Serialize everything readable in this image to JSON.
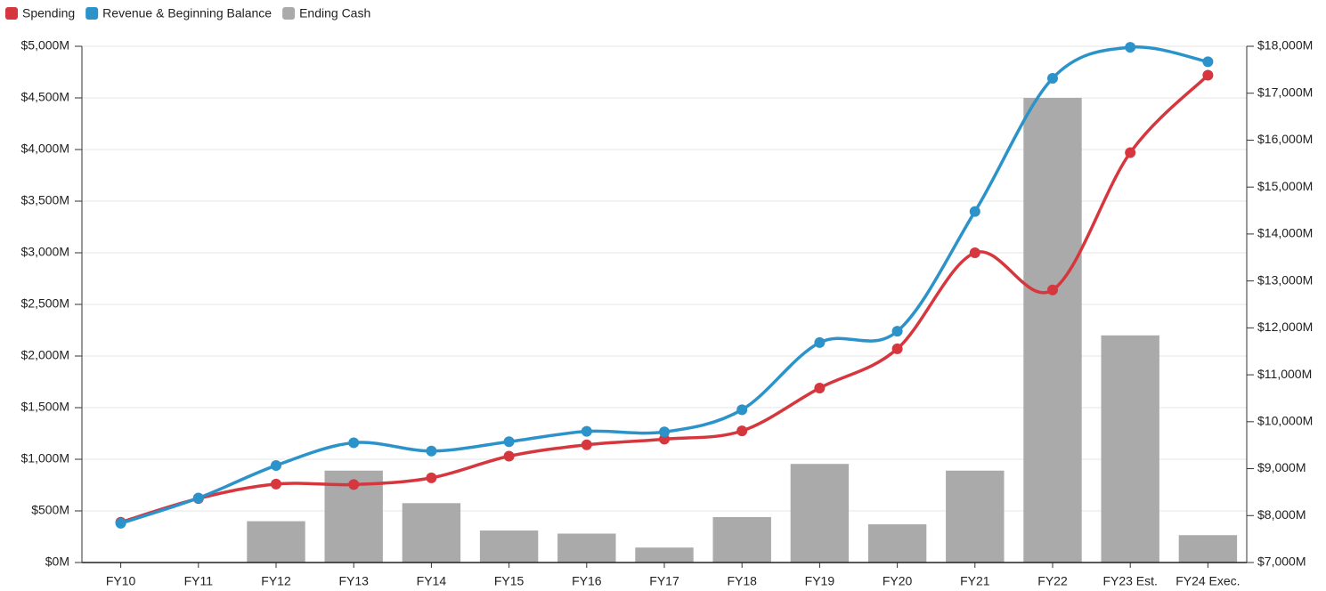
{
  "chart_data": {
    "type": "bar_line",
    "categories": [
      "FY10",
      "FY11",
      "FY12",
      "FY13",
      "FY14",
      "FY15",
      "FY16",
      "FY17",
      "FY18",
      "FY19",
      "FY20",
      "FY21",
      "FY22",
      "FY23 Est.",
      "FY24 Exec."
    ],
    "series": [
      {
        "name": "Spending",
        "color": "#d6363d",
        "kind": "line",
        "values": [
          390,
          620,
          760,
          755,
          820,
          1030,
          1140,
          1195,
          1275,
          1690,
          2070,
          3000,
          2640,
          3970,
          4720
        ]
      },
      {
        "name": "Revenue & Beginning Balance",
        "color": "#2b93c9",
        "kind": "line",
        "values": [
          380,
          625,
          940,
          1160,
          1080,
          1170,
          1270,
          1265,
          1480,
          2130,
          2240,
          3400,
          4690,
          4990,
          4850
        ]
      },
      {
        "name": "Ending Cash",
        "color": "#aaaaaa",
        "kind": "bar",
        "values": [
          0,
          0,
          400,
          890,
          575,
          310,
          280,
          145,
          440,
          955,
          370,
          890,
          4500,
          2200,
          265
        ]
      }
    ],
    "ylim": [
      0,
      5000
    ],
    "yticks": [
      {
        "value": 0,
        "label": "$0M"
      },
      {
        "value": 500,
        "label": "$500M"
      },
      {
        "value": 1000,
        "label": "$1,000M"
      },
      {
        "value": 1500,
        "label": "$1,500M"
      },
      {
        "value": 2000,
        "label": "$2,000M"
      },
      {
        "value": 2500,
        "label": "$2,500M"
      },
      {
        "value": 3000,
        "label": "$3,000M"
      },
      {
        "value": 3500,
        "label": "$3,500M"
      },
      {
        "value": 4000,
        "label": "$4,000M"
      },
      {
        "value": 4500,
        "label": "$4,500M"
      },
      {
        "value": 5000,
        "label": "$5,000M"
      }
    ],
    "y2lim": [
      7000,
      18000
    ],
    "y2ticks": [
      {
        "value": 7000,
        "label": "$7,000M"
      },
      {
        "value": 8000,
        "label": "$8,000M"
      },
      {
        "value": 9000,
        "label": "$9,000M"
      },
      {
        "value": 10000,
        "label": "$10,000M"
      },
      {
        "value": 11000,
        "label": "$11,000M"
      },
      {
        "value": 12000,
        "label": "$12,000M"
      },
      {
        "value": 13000,
        "label": "$13,000M"
      },
      {
        "value": 14000,
        "label": "$14,000M"
      },
      {
        "value": 15000,
        "label": "$15,000M"
      },
      {
        "value": 16000,
        "label": "$16,000M"
      },
      {
        "value": 17000,
        "label": "$17,000M"
      },
      {
        "value": 18000,
        "label": "$18,000M"
      }
    ],
    "grid": true,
    "legend": "top-left"
  }
}
